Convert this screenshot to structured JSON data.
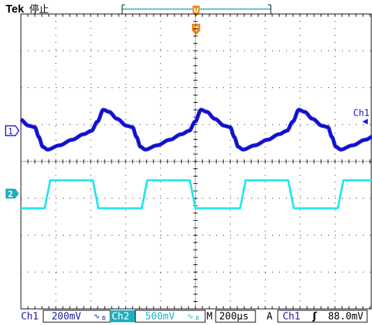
{
  "header": {
    "brand": "Tek",
    "status": "停止",
    "trigger_marker_top": "U",
    "trigger_marker": "T"
  },
  "screen": {
    "ch1_marker": "1",
    "ch2_marker": "2",
    "ch1_side_label": "Ch1"
  },
  "status_bar": {
    "ch1_name": "Ch1",
    "ch1_scale": "200mV",
    "ch1_coupling": "∿",
    "ch1_bw": "B",
    "ch2_name": "Ch2",
    "ch2_scale": "500mV",
    "ch2_coupling": "∿",
    "ch2_bw": "B",
    "timebase_prefix": "M",
    "timebase": "200µs",
    "trigger_mode": "A",
    "trigger_source": "Ch1",
    "trigger_slope": "ʃ",
    "trigger_level": "88.0mV"
  },
  "colors": {
    "ch1": "#1a1adc",
    "ch2": "#22e6ee",
    "trigger": "#f28a1e",
    "grid": "#000000",
    "bar_label": "#1a1aa0"
  }
}
